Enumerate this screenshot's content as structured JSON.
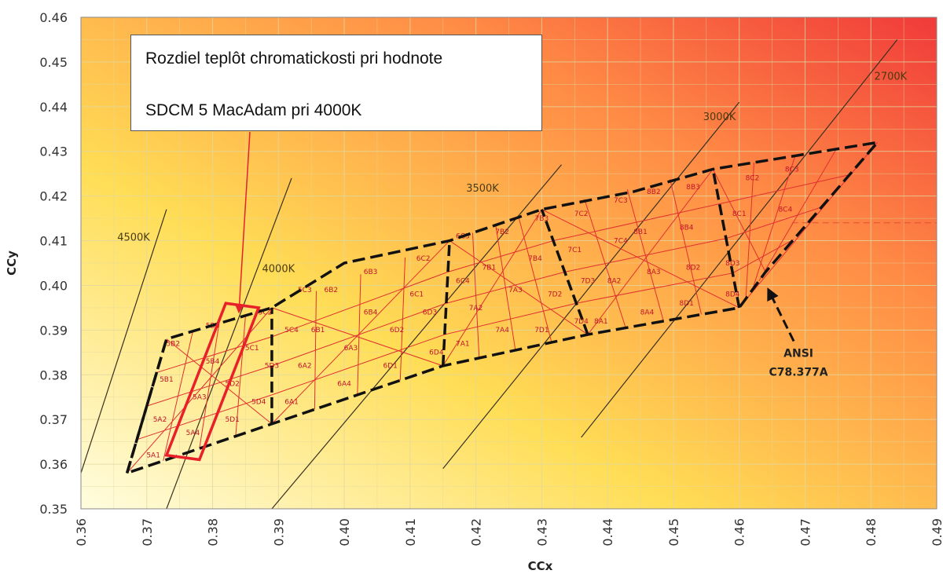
{
  "chart_data": {
    "type": "scatter",
    "xlabel": "CCx",
    "ylabel": "CCy",
    "xlim": [
      0.36,
      0.49
    ],
    "ylim": [
      0.35,
      0.46
    ],
    "x_ticks": [
      "0.36",
      "0.37",
      "0.38",
      "0.39",
      "0.40",
      "0.41",
      "0.42",
      "0.43",
      "0.44",
      "0.45",
      "0.46",
      "0.47",
      "0.48",
      "0.49"
    ],
    "y_ticks": [
      "0.35",
      "0.36",
      "0.37",
      "0.38",
      "0.39",
      "0.40",
      "0.41",
      "0.42",
      "0.43",
      "0.44",
      "0.45",
      "0.46"
    ],
    "grid": true,
    "background_gradient": [
      "#fffde0",
      "#ffdd55",
      "#ff8a45",
      "#f03a3a"
    ],
    "grid_color": "#e0d8a0",
    "cell_line_color": "#e03030",
    "cct_lines": [
      {
        "label": "4500K",
        "x": [
          0.36,
          0.373
        ],
        "y": [
          0.358,
          0.417
        ],
        "label_at": [
          0.368,
          0.41
        ]
      },
      {
        "label": "4000K",
        "x": [
          0.373,
          0.392
        ],
        "y": [
          0.35,
          0.424
        ],
        "label_at": [
          0.39,
          0.403
        ]
      },
      {
        "label": "3500K",
        "x": [
          0.389,
          0.433
        ],
        "y": [
          0.35,
          0.427
        ],
        "label_at": [
          0.421,
          0.421
        ]
      },
      {
        "label": "3000K",
        "x": [
          0.415,
          0.46
        ],
        "y": [
          0.359,
          0.441
        ],
        "label_at": [
          0.457,
          0.437
        ]
      },
      {
        "label": "2700K",
        "x": [
          0.436,
          0.484
        ],
        "y": [
          0.366,
          0.455
        ],
        "label_at": [
          0.483,
          0.446
        ]
      }
    ],
    "ansi_outline": {
      "x": [
        0.367,
        0.373,
        0.389,
        0.4,
        0.416,
        0.43,
        0.444,
        0.456,
        0.481,
        0.464,
        0.46,
        0.437,
        0.415,
        0.389,
        0.367
      ],
      "y": [
        0.358,
        0.388,
        0.395,
        0.405,
        0.41,
        0.417,
        0.421,
        0.426,
        0.432,
        0.403,
        0.395,
        0.389,
        0.382,
        0.369,
        0.358
      ]
    },
    "quadrangles": [
      {
        "corners": [
          [
            0.367,
            0.358
          ],
          [
            0.389,
            0.369
          ],
          [
            0.389,
            0.395
          ],
          [
            0.373,
            0.388
          ]
        ]
      },
      {
        "corners": [
          [
            0.389,
            0.369
          ],
          [
            0.415,
            0.382
          ],
          [
            0.416,
            0.41
          ],
          [
            0.389,
            0.395
          ]
        ]
      },
      {
        "corners": [
          [
            0.415,
            0.382
          ],
          [
            0.437,
            0.389
          ],
          [
            0.43,
            0.417
          ],
          [
            0.416,
            0.41
          ]
        ]
      },
      {
        "corners": [
          [
            0.437,
            0.389
          ],
          [
            0.46,
            0.395
          ],
          [
            0.456,
            0.426
          ],
          [
            0.43,
            0.417
          ]
        ]
      },
      {
        "corners": [
          [
            0.46,
            0.395
          ],
          [
            0.464,
            0.403
          ],
          [
            0.481,
            0.432
          ],
          [
            0.456,
            0.426
          ]
        ]
      }
    ],
    "cell_labels": [
      {
        "text": "5A1",
        "x": 0.371,
        "y": 0.3615
      },
      {
        "text": "5A2",
        "x": 0.372,
        "y": 0.3695
      },
      {
        "text": "5A3",
        "x": 0.378,
        "y": 0.3745
      },
      {
        "text": "5A4",
        "x": 0.377,
        "y": 0.3665
      },
      {
        "text": "5B1",
        "x": 0.373,
        "y": 0.3785
      },
      {
        "text": "5B2",
        "x": 0.374,
        "y": 0.3865
      },
      {
        "text": "5B3",
        "x": 0.38,
        "y": 0.3905
      },
      {
        "text": "5B4",
        "x": 0.38,
        "y": 0.3825
      },
      {
        "text": "5C1",
        "x": 0.386,
        "y": 0.3855
      },
      {
        "text": "5C2",
        "x": 0.388,
        "y": 0.3935
      },
      {
        "text": "5C3",
        "x": 0.394,
        "y": 0.3985
      },
      {
        "text": "5C4",
        "x": 0.392,
        "y": 0.3895
      },
      {
        "text": "5D1",
        "x": 0.383,
        "y": 0.3695
      },
      {
        "text": "5D2",
        "x": 0.383,
        "y": 0.3775
      },
      {
        "text": "5D3",
        "x": 0.389,
        "y": 0.3815
      },
      {
        "text": "5D4",
        "x": 0.387,
        "y": 0.3735
      },
      {
        "text": "6A1",
        "x": 0.392,
        "y": 0.3735
      },
      {
        "text": "6A2",
        "x": 0.394,
        "y": 0.3815
      },
      {
        "text": "6A3",
        "x": 0.401,
        "y": 0.3855
      },
      {
        "text": "6A4",
        "x": 0.4,
        "y": 0.3775
      },
      {
        "text": "6B1",
        "x": 0.396,
        "y": 0.3895
      },
      {
        "text": "6B2",
        "x": 0.398,
        "y": 0.3985
      },
      {
        "text": "6B3",
        "x": 0.404,
        "y": 0.4025
      },
      {
        "text": "6B4",
        "x": 0.404,
        "y": 0.3935
      },
      {
        "text": "6C1",
        "x": 0.411,
        "y": 0.3975
      },
      {
        "text": "6C2",
        "x": 0.412,
        "y": 0.4055
      },
      {
        "text": "6C3",
        "x": 0.418,
        "y": 0.4105
      },
      {
        "text": "6C4",
        "x": 0.418,
        "y": 0.4005
      },
      {
        "text": "6D1",
        "x": 0.407,
        "y": 0.3815
      },
      {
        "text": "6D2",
        "x": 0.408,
        "y": 0.3895
      },
      {
        "text": "6D3",
        "x": 0.413,
        "y": 0.3935
      },
      {
        "text": "6D4",
        "x": 0.414,
        "y": 0.3845
      },
      {
        "text": "7A1",
        "x": 0.418,
        "y": 0.3865
      },
      {
        "text": "7A2",
        "x": 0.42,
        "y": 0.3945
      },
      {
        "text": "7A3",
        "x": 0.426,
        "y": 0.3985
      },
      {
        "text": "7A4",
        "x": 0.424,
        "y": 0.3895
      },
      {
        "text": "7B1",
        "x": 0.422,
        "y": 0.4035
      },
      {
        "text": "7B2",
        "x": 0.424,
        "y": 0.4115
      },
      {
        "text": "7B3",
        "x": 0.43,
        "y": 0.4145
      },
      {
        "text": "7B4",
        "x": 0.429,
        "y": 0.4055
      },
      {
        "text": "7C1",
        "x": 0.435,
        "y": 0.4075
      },
      {
        "text": "7C2",
        "x": 0.436,
        "y": 0.4155
      },
      {
        "text": "7C3",
        "x": 0.442,
        "y": 0.4185
      },
      {
        "text": "7C4",
        "x": 0.442,
        "y": 0.4095
      },
      {
        "text": "7D1",
        "x": 0.43,
        "y": 0.3895
      },
      {
        "text": "7D2",
        "x": 0.432,
        "y": 0.3975
      },
      {
        "text": "7D3",
        "x": 0.437,
        "y": 0.4005
      },
      {
        "text": "7D4",
        "x": 0.436,
        "y": 0.3915
      },
      {
        "text": "8A1",
        "x": 0.439,
        "y": 0.3915
      },
      {
        "text": "8A2",
        "x": 0.441,
        "y": 0.4005
      },
      {
        "text": "8A3",
        "x": 0.447,
        "y": 0.4025
      },
      {
        "text": "8A4",
        "x": 0.446,
        "y": 0.3935
      },
      {
        "text": "8B1",
        "x": 0.445,
        "y": 0.4115
      },
      {
        "text": "8B2",
        "x": 0.447,
        "y": 0.4205
      },
      {
        "text": "8B3",
        "x": 0.453,
        "y": 0.4215
      },
      {
        "text": "8B4",
        "x": 0.452,
        "y": 0.4125
      },
      {
        "text": "8C1",
        "x": 0.46,
        "y": 0.4155
      },
      {
        "text": "8C2",
        "x": 0.462,
        "y": 0.4235
      },
      {
        "text": "8C3",
        "x": 0.468,
        "y": 0.4255
      },
      {
        "text": "8C4",
        "x": 0.467,
        "y": 0.4165
      },
      {
        "text": "8D1",
        "x": 0.452,
        "y": 0.3955
      },
      {
        "text": "8D2",
        "x": 0.453,
        "y": 0.4035
      },
      {
        "text": "8D3",
        "x": 0.459,
        "y": 0.4045
      },
      {
        "text": "8D4",
        "x": 0.459,
        "y": 0.3975
      }
    ],
    "reference_line": {
      "y": 0.414,
      "x": [
        0.468,
        0.49
      ]
    },
    "highlight_box": {
      "corners": [
        [
          0.373,
          0.362
        ],
        [
          0.378,
          0.361
        ],
        [
          0.387,
          0.395
        ],
        [
          0.382,
          0.396
        ]
      ],
      "color": "#e8202a"
    },
    "callout": {
      "line1": "Rozdiel teplôt chromatickosti pri hodnote",
      "line2": "SDCM 5 MacAdam pri 4000K",
      "arrow_to": [
        0.384,
        0.393
      ]
    },
    "ansi_label": {
      "lines": [
        "ANSI",
        "C78.377A"
      ],
      "x": 0.469,
      "y": 0.384,
      "arrow_to": [
        0.464,
        0.401
      ]
    }
  }
}
